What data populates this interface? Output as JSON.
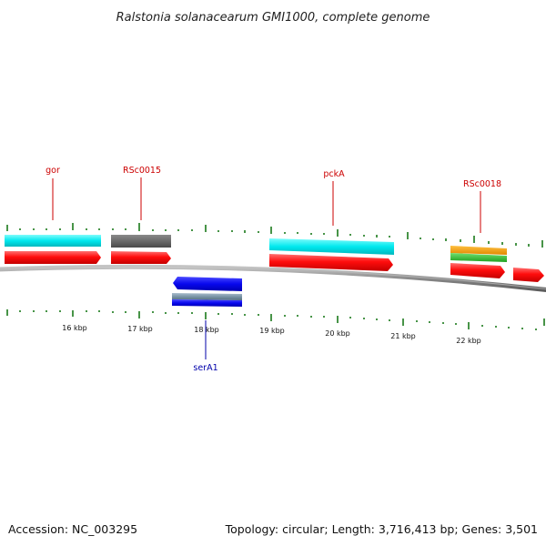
{
  "title": "Ralstonia solanacearum GMI1000, complete genome",
  "footer": {
    "accession": "Accession: NC_003295",
    "summary": "Topology: circular; Length: 3,716,413 bp; Genes: 3,501"
  },
  "colors": {
    "forward_label": "#cc0000",
    "reverse_label": "#0000aa",
    "tick": "#1a7a1a",
    "backbone": "#8a8a8a"
  },
  "ruler": [
    "16 kbp",
    "17 kbp",
    "18 kbp",
    "19 kbp",
    "20 kbp",
    "21 kbp",
    "22 kbp"
  ],
  "gene_labels": {
    "gor": "gor",
    "rsc0015": "RSc0015",
    "pcka": "pckA",
    "rsc0018": "RSc0018",
    "sera1": "serA1"
  },
  "features": [
    {
      "id": "gor-cds",
      "strand": "+",
      "color": "#00eeee"
    },
    {
      "id": "gor-gene",
      "strand": "+",
      "color": "#ff0000"
    },
    {
      "id": "rsc0015-cds",
      "strand": "+",
      "color": "#666666"
    },
    {
      "id": "rsc0015-gene",
      "strand": "+",
      "color": "#ff0000"
    },
    {
      "id": "pcka-cds",
      "strand": "+",
      "color": "#00eeee"
    },
    {
      "id": "pcka-gene",
      "strand": "+",
      "color": "#ff0000"
    },
    {
      "id": "rsc0018-cds-a",
      "strand": "+",
      "color": "#ff9900"
    },
    {
      "id": "rsc0018-cds-b",
      "strand": "+",
      "color": "#33cc33"
    },
    {
      "id": "rsc0018-gene",
      "strand": "+",
      "color": "#ff0000"
    },
    {
      "id": "next-gene",
      "strand": "+",
      "color": "#ff0000"
    },
    {
      "id": "sera1-gene",
      "strand": "-",
      "color": "#0000ee"
    },
    {
      "id": "sera1-cds-a",
      "strand": "-",
      "color": "#7799aa"
    },
    {
      "id": "sera1-cds-b",
      "strand": "-",
      "color": "#0000ee"
    }
  ]
}
